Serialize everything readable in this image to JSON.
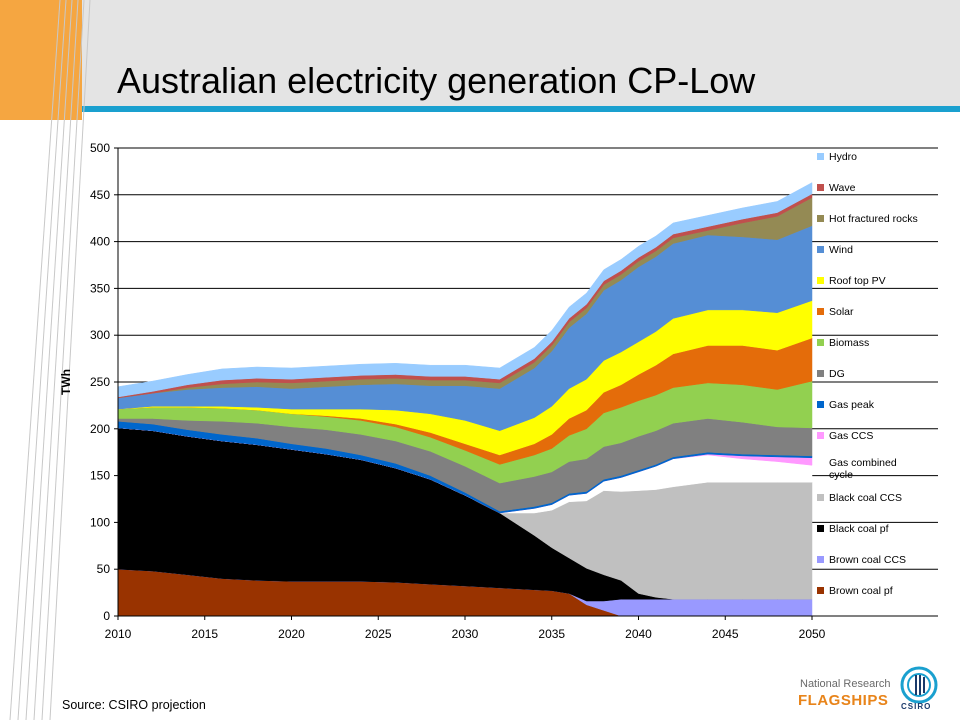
{
  "slide": {
    "title": "Australian electricity generation CP-Low",
    "source": "Source: CSIRO projection",
    "logo_line1": "National Research",
    "logo_line2": "FLAGSHIPS",
    "logo_seal_text": "CSIRO",
    "accent_orange": "#f5a641",
    "accent_blue": "#1aa0cf"
  },
  "chart_data": {
    "type": "area",
    "stacked": true,
    "ylabel": "TWh",
    "xlabel": "",
    "ylim": [
      0,
      500
    ],
    "yticks": [
      0,
      50,
      100,
      150,
      200,
      250,
      300,
      350,
      400,
      450,
      500
    ],
    "xticks": [
      2010,
      2015,
      2020,
      2025,
      2030,
      2035,
      2040,
      2045,
      2050
    ],
    "grid": "horizontal",
    "legend_position": "right",
    "x": [
      2010,
      2012,
      2014,
      2016,
      2018,
      2020,
      2022,
      2024,
      2026,
      2028,
      2030,
      2032,
      2034,
      2035,
      2036,
      2037,
      2038,
      2039,
      2040,
      2041,
      2042,
      2044,
      2046,
      2048,
      2050
    ],
    "series": [
      {
        "name": "Brown coal pf",
        "color": "#993300",
        "values": [
          50,
          48,
          44,
          40,
          38,
          37,
          37,
          37,
          36,
          34,
          32,
          30,
          28,
          27,
          24,
          12,
          6,
          0,
          0,
          0,
          0,
          0,
          0,
          0,
          0
        ]
      },
      {
        "name": "Brown coal CCS",
        "color": "#9999ff",
        "values": [
          0,
          0,
          0,
          0,
          0,
          0,
          0,
          0,
          0,
          0,
          0,
          0,
          0,
          0,
          0,
          4,
          10,
          18,
          18,
          18,
          18,
          18,
          18,
          18,
          18
        ]
      },
      {
        "name": "Black coal pf",
        "color": "#000000",
        "values": [
          151,
          150,
          148,
          147,
          145,
          141,
          136,
          130,
          122,
          112,
          97,
          80,
          58,
          46,
          38,
          35,
          28,
          20,
          6,
          2,
          0,
          0,
          0,
          0,
          0
        ]
      },
      {
        "name": "Black coal CCS",
        "color": "#c0c0c0",
        "values": [
          0,
          0,
          0,
          0,
          0,
          0,
          0,
          0,
          0,
          0,
          0,
          0,
          24,
          40,
          60,
          72,
          90,
          95,
          110,
          115,
          120,
          125,
          125,
          125,
          125
        ]
      },
      {
        "name": "Gas combined cycle",
        "color": "#ffffff",
        "values": [
          0,
          0,
          0,
          0,
          0,
          0,
          0,
          0,
          0,
          0,
          0,
          0,
          5,
          6,
          7,
          8,
          10,
          15,
          20,
          25,
          30,
          29,
          25,
          22,
          18
        ]
      },
      {
        "name": "Gas CCS",
        "color": "#ff99ff",
        "values": [
          0,
          0,
          0,
          0,
          0,
          0,
          0,
          0,
          0,
          0,
          0,
          0,
          0,
          0,
          0,
          0,
          0,
          0,
          0,
          0,
          0,
          1,
          3,
          5,
          8
        ]
      },
      {
        "name": "Gas peak",
        "color": "#0066cc",
        "values": [
          7,
          7,
          7,
          7,
          7,
          6,
          6,
          5,
          5,
          4,
          3,
          2,
          2,
          2,
          2,
          2,
          2,
          2,
          2,
          2,
          2,
          2,
          2,
          2,
          2
        ]
      },
      {
        "name": "DG",
        "color": "#808080",
        "values": [
          3,
          6,
          10,
          14,
          16,
          18,
          20,
          22,
          24,
          26,
          28,
          30,
          32,
          33,
          34,
          35,
          35,
          35,
          36,
          36,
          36,
          36,
          34,
          30,
          30
        ]
      },
      {
        "name": "Biomass",
        "color": "#92d050",
        "values": [
          10,
          12,
          14,
          14,
          14,
          14,
          14,
          15,
          15,
          15,
          17,
          20,
          23,
          25,
          28,
          32,
          36,
          38,
          38,
          38,
          38,
          38,
          40,
          40,
          50
        ]
      },
      {
        "name": "Solar",
        "color": "#e46c0a",
        "values": [
          0,
          0,
          0,
          0,
          0,
          0,
          1,
          2,
          3,
          5,
          7,
          10,
          12,
          15,
          18,
          20,
          22,
          24,
          28,
          32,
          36,
          40,
          42,
          42,
          46
        ]
      },
      {
        "name": "Roof top PV",
        "color": "#ffff00",
        "values": [
          0,
          1,
          1,
          2,
          3,
          5,
          7,
          10,
          15,
          20,
          25,
          26,
          28,
          30,
          32,
          33,
          34,
          35,
          35,
          36,
          38,
          38,
          38,
          40,
          40
        ]
      },
      {
        "name": "Wind",
        "color": "#558ed5",
        "values": [
          12,
          14,
          18,
          20,
          22,
          22,
          24,
          26,
          28,
          30,
          37,
          45,
          53,
          59,
          65,
          70,
          75,
          77,
          80,
          80,
          80,
          80,
          78,
          78,
          80
        ]
      },
      {
        "name": "Hot fractured rocks",
        "color": "#948a54",
        "values": [
          0,
          0,
          2,
          4,
          5,
          6,
          6,
          6,
          6,
          6,
          6,
          6,
          6,
          6,
          6,
          6,
          6,
          6,
          6,
          6,
          6,
          5,
          15,
          25,
          30
        ]
      },
      {
        "name": "Wave",
        "color": "#c0504d",
        "values": [
          1,
          2,
          3,
          4,
          4,
          4,
          4,
          4,
          4,
          4,
          4,
          4,
          4,
          4,
          4,
          4,
          4,
          4,
          4,
          4,
          4,
          4,
          4,
          4,
          4
        ]
      },
      {
        "name": "Hydro",
        "color": "#99ccff",
        "values": [
          11,
          11,
          11,
          12,
          12,
          12,
          12,
          12,
          12,
          12,
          12,
          12,
          12,
          12,
          12,
          12,
          12,
          12,
          12,
          12,
          12,
          12,
          12,
          12,
          12
        ]
      }
    ]
  }
}
